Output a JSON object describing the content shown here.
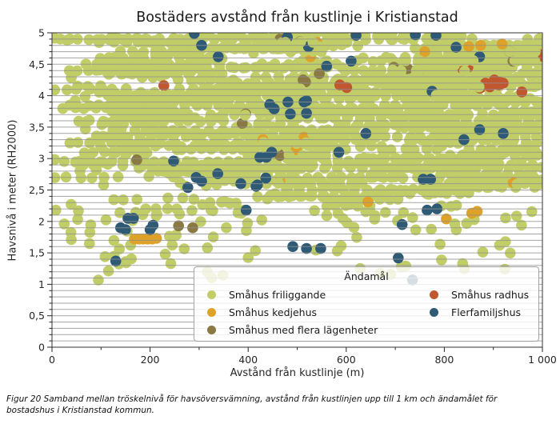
{
  "figure": {
    "title": "Bostäders avstånd från kustlinje i Kristianstad",
    "caption": "Figur 20 Samband mellan tröskelnivå för havsöversvämning, avstånd från kustlinjen upp till 1 km och ändamålet för bostadshus i Kristianstad kommun."
  },
  "chart_data": {
    "type": "scatter",
    "title": "Bostäders avstånd från kustlinje i Kristianstad",
    "xlabel": "Avstånd från kustlinje (m)",
    "ylabel": "Havsnivå i meter (RH2000)",
    "xlim": [
      0,
      1000
    ],
    "ylim": [
      0,
      5
    ],
    "x_ticks": {
      "values": [
        0,
        200,
        400,
        600,
        800,
        1000
      ],
      "labels": [
        "0",
        "200",
        "400",
        "600",
        "800",
        "1 000"
      ],
      "minor_step": 100
    },
    "y_ticks": {
      "values": [
        0,
        0.5,
        1,
        1.5,
        2,
        2.5,
        3,
        3.5,
        4,
        4.5,
        5
      ],
      "labels": [
        "0",
        "0,5",
        "1",
        "1,5",
        "2",
        "2,5",
        "3",
        "3,5",
        "4",
        "4,5",
        "5"
      ],
      "minor_step": 0.1
    },
    "grid": {
      "axis": "y",
      "step": 0.1,
      "color": "#8f8f8f",
      "opacity": 0.8,
      "above_points": true
    },
    "marker": {
      "radius_px": 6.8,
      "legend_radius_px": 5.5
    },
    "legend": {
      "title": "Ändamål",
      "position": "lower right inside",
      "columns": [
        [
          0,
          1,
          2
        ],
        [
          3,
          4
        ]
      ]
    },
    "series": [
      {
        "name": "Småhus friliggande",
        "slug": "smahus-friliggande",
        "color": "#c1ce67",
        "representation": "procedural-dense",
        "approx_count": 1700,
        "generator": {
          "seed": 1337,
          "row_step": 0.05,
          "rows_y": [
            2.2,
            5.0
          ],
          "runs_per_row": [
            3,
            6
          ],
          "run_length_m": [
            60,
            280
          ],
          "point_spacing_m": [
            17,
            29
          ],
          "jitter_y": 0.02,
          "singles_count": 130,
          "low_scatter": {
            "count": 85,
            "y_top": 2.18,
            "y_span": 1.0,
            "exp": 1.7
          },
          "deep_scatter": {
            "count": 10,
            "y_min": 1.05,
            "y_span": 0.3
          }
        }
      },
      {
        "name": "Småhus kedjehus",
        "slug": "smahus-kedjehus",
        "color": "#dfa228",
        "points": [
          [
            168,
            1.72
          ],
          [
            177,
            1.72
          ],
          [
            186,
            1.72
          ],
          [
            195,
            1.72
          ],
          [
            204,
            1.72
          ],
          [
            213,
            1.73
          ],
          [
            430,
            3.3
          ],
          [
            452,
            3.11
          ],
          [
            465,
            2.64
          ],
          [
            498,
            3.14
          ],
          [
            514,
            3.34
          ],
          [
            644,
            2.31
          ],
          [
            804,
            2.04
          ],
          [
            856,
            2.13
          ],
          [
            867,
            2.16
          ],
          [
            527,
            4.62
          ],
          [
            760,
            4.7
          ],
          [
            918,
            4.82
          ],
          [
            874,
            4.8
          ],
          [
            850,
            4.78
          ],
          [
            540,
            4.85
          ],
          [
            940,
            2.62
          ]
        ]
      },
      {
        "name": "Småhus med flera lägenheter",
        "slug": "smahus-med-flera-lagenheter",
        "color": "#8a7942",
        "points": [
          [
            258,
            1.93
          ],
          [
            287,
            1.9
          ],
          [
            173,
            2.98
          ],
          [
            460,
            3.09
          ],
          [
            465,
            3.05
          ],
          [
            395,
            3.71
          ],
          [
            388,
            3.56
          ],
          [
            517,
            4.22
          ],
          [
            512,
            4.25
          ],
          [
            465,
            4.9
          ],
          [
            506,
            4.86
          ],
          [
            697,
            4.45
          ],
          [
            725,
            4.43
          ],
          [
            748,
            4.4
          ],
          [
            545,
            4.35
          ],
          [
            940,
            4.55
          ]
        ]
      },
      {
        "name": "Småhus radhus",
        "slug": "smahus-radhus",
        "color": "#c1572f",
        "points": [
          [
            884,
            4.2
          ],
          [
            893,
            4.14
          ],
          [
            902,
            4.25
          ],
          [
            911,
            4.17
          ],
          [
            920,
            4.2
          ],
          [
            914,
            4.21
          ],
          [
            837,
            4.43
          ],
          [
            848,
            4.45
          ],
          [
            990,
            4.67
          ],
          [
            998,
            4.63
          ],
          [
            587,
            4.17
          ],
          [
            601,
            4.13
          ],
          [
            228,
            4.16
          ],
          [
            958,
            4.06
          ],
          [
            873,
            4.12
          ]
        ]
      },
      {
        "name": "Flerfamiljshus",
        "slug": "flerfamiljshus",
        "color": "#2e5a75",
        "points": [
          [
            290,
            4.99
          ],
          [
            305,
            4.8
          ],
          [
            339,
            4.62
          ],
          [
            480,
            4.93
          ],
          [
            523,
            4.78
          ],
          [
            620,
            4.96
          ],
          [
            741,
            4.97
          ],
          [
            783,
            4.96
          ],
          [
            824,
            4.77
          ],
          [
            610,
            4.55
          ],
          [
            560,
            4.47
          ],
          [
            872,
            4.62
          ],
          [
            934,
            4.7
          ],
          [
            775,
            4.07
          ],
          [
            514,
            3.9
          ],
          [
            481,
            3.9
          ],
          [
            519,
            3.92
          ],
          [
            453,
            3.79
          ],
          [
            486,
            3.71
          ],
          [
            519,
            3.72
          ],
          [
            444,
            3.86
          ],
          [
            424,
            3.02
          ],
          [
            437,
            3.02
          ],
          [
            448,
            3.1
          ],
          [
            248,
            2.96
          ],
          [
            294,
            2.7
          ],
          [
            277,
            2.54
          ],
          [
            305,
            2.64
          ],
          [
            338,
            2.76
          ],
          [
            385,
            2.6
          ],
          [
            419,
            2.58
          ],
          [
            436,
            2.69
          ],
          [
            416,
            2.56
          ],
          [
            585,
            3.1
          ],
          [
            640,
            3.4
          ],
          [
            840,
            3.3
          ],
          [
            872,
            3.46
          ],
          [
            920,
            3.4
          ],
          [
            757,
            2.67
          ],
          [
            772,
            2.67
          ],
          [
            765,
            2.18
          ],
          [
            785,
            2.2
          ],
          [
            714,
            1.95
          ],
          [
            396,
            2.18
          ],
          [
            166,
            2.05
          ],
          [
            206,
            1.94
          ],
          [
            155,
            2.05
          ],
          [
            140,
            1.9
          ],
          [
            150,
            1.87
          ],
          [
            200,
            1.87
          ],
          [
            130,
            1.37
          ],
          [
            491,
            1.6
          ],
          [
            519,
            1.57
          ],
          [
            548,
            1.57
          ],
          [
            706,
            1.42
          ],
          [
            735,
            1.07
          ]
        ]
      }
    ],
    "axis_color": "#333333",
    "tick_color": "#262626"
  }
}
